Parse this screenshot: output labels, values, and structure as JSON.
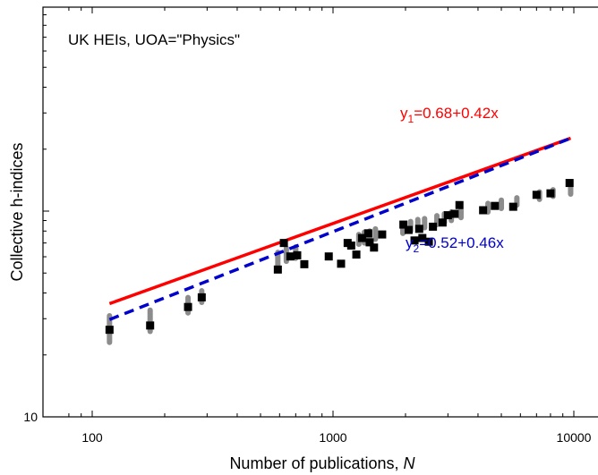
{
  "chart_data": {
    "type": "scatter",
    "annotation": "UK HEIs, UOA=\"Physics\"",
    "xlabel_main": "Number of publications, ",
    "xlabel_italic": "N",
    "ylabel": "Collective h-indices",
    "x_scale": "log",
    "y_scale": "log",
    "xlim": [
      75,
      16000
    ],
    "ylim": [
      10,
      1000
    ],
    "x_ticks": [
      100,
      1000,
      10000
    ],
    "x_tick_labels": [
      "100",
      "1000",
      "10000"
    ],
    "y_ticks": [
      10
    ],
    "y_tick_labels": [
      "10"
    ],
    "grid": false,
    "colors": {
      "points": "#000000",
      "bootstrap": "#8c8c8c",
      "fit1": "#ff0000",
      "fit2": "#0000cc"
    },
    "fits": [
      {
        "label_main": "y",
        "label_sub": "1",
        "label_rest": "=0.68+0.42x",
        "intercept": 0.68,
        "slope": 0.42,
        "x_range": [
          118,
          9700
        ],
        "color": "#ff0000",
        "style": "solid"
      },
      {
        "label_main": "y",
        "label_sub": "2",
        "label_rest": "=0.52+0.46x",
        "intercept": 0.52,
        "slope": 0.46,
        "x_range": [
          118,
          9700
        ],
        "color": "#0000cc",
        "style": "dashed"
      }
    ],
    "points": [
      [
        118,
        26.5
      ],
      [
        174,
        27.8
      ],
      [
        250,
        34.2
      ],
      [
        285,
        38.1
      ],
      [
        590,
        52.0
      ],
      [
        625,
        70.0
      ],
      [
        665,
        60.2
      ],
      [
        710,
        61.0
      ],
      [
        760,
        55.2
      ],
      [
        960,
        60.2
      ],
      [
        1080,
        55.5
      ],
      [
        1150,
        70.0
      ],
      [
        1190,
        68.0
      ],
      [
        1250,
        61.5
      ],
      [
        1320,
        74.0
      ],
      [
        1400,
        78.0
      ],
      [
        1420,
        70.5
      ],
      [
        1480,
        66.5
      ],
      [
        1600,
        77.0
      ],
      [
        1960,
        86.0
      ],
      [
        2060,
        81.0
      ],
      [
        2180,
        72.0
      ],
      [
        2280,
        82.0
      ],
      [
        2350,
        74.0
      ],
      [
        2500,
        71.0
      ],
      [
        2600,
        84.0
      ],
      [
        2850,
        88.0
      ],
      [
        3000,
        95.5
      ],
      [
        3200,
        97.0
      ],
      [
        3350,
        107.0
      ],
      [
        4200,
        101.0
      ],
      [
        4700,
        106.0
      ],
      [
        5600,
        105.0
      ],
      [
        7000,
        120.0
      ],
      [
        8000,
        122.0
      ],
      [
        9600,
        137.0
      ]
    ],
    "bootstrap_clusters": [
      [
        118,
        23,
        31
      ],
      [
        174,
        26,
        33
      ],
      [
        250,
        32,
        38
      ],
      [
        285,
        36,
        41
      ],
      [
        590,
        54,
        63
      ],
      [
        640,
        57,
        66
      ],
      [
        700,
        59,
        67
      ],
      [
        1280,
        69,
        77
      ],
      [
        1350,
        70,
        79
      ],
      [
        1420,
        71,
        80
      ],
      [
        1500,
        73,
        82
      ],
      [
        1950,
        78,
        87
      ],
      [
        2100,
        80,
        89
      ],
      [
        2250,
        82,
        91
      ],
      [
        2400,
        83,
        92
      ],
      [
        2700,
        86,
        95
      ],
      [
        2900,
        88,
        97
      ],
      [
        3100,
        90,
        99
      ],
      [
        3400,
        93,
        101
      ],
      [
        4400,
        99,
        109
      ],
      [
        5000,
        103,
        113
      ],
      [
        5800,
        107,
        116
      ],
      [
        7200,
        114,
        124
      ],
      [
        8200,
        118,
        127
      ],
      [
        9700,
        121,
        133
      ]
    ]
  }
}
